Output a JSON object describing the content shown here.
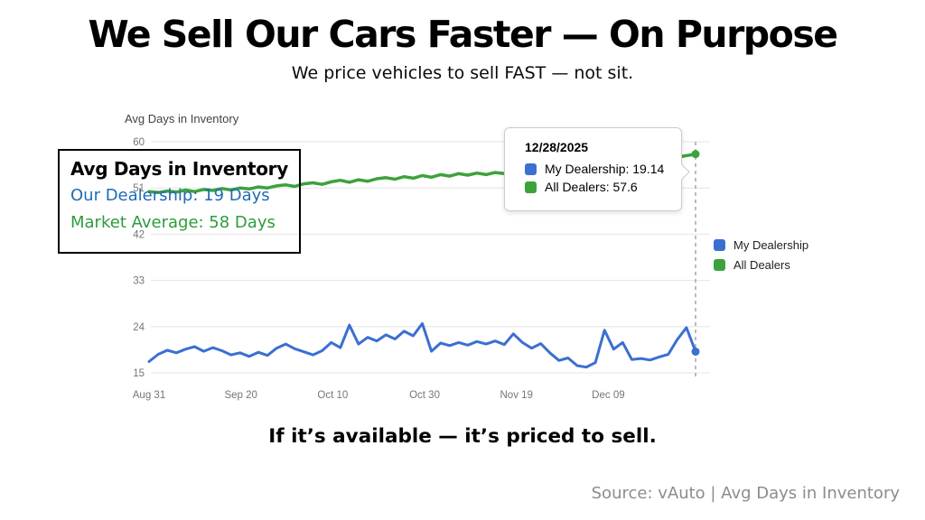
{
  "page": {
    "title": "We Sell Our Cars Faster — On Purpose",
    "subtitle": "We price vehicles to sell FAST — not sit.",
    "statement": "If it’s available — it’s priced to sell.",
    "source": "Source: vAuto | Avg Days in Inventory"
  },
  "colors": {
    "dealership_blue": "#3B6FD1",
    "dealers_green": "#3CA23C",
    "overlay_blue": "#1F6BB5",
    "overlay_green": "#2D9C3C",
    "grid": "#E4E4E4",
    "crosshair": "#9AA0A6"
  },
  "overlay": {
    "title": "Avg Days in Inventory",
    "line1": "Our Dealership: 19 Days",
    "line2": "Market Average: 58 Days"
  },
  "tooltip": {
    "date": "12/28/2025",
    "entries": [
      {
        "text": "My Dealership: 19.14",
        "color": "#3B6FD1"
      },
      {
        "text": "All Dealers: 57.6",
        "color": "#3CA23C"
      }
    ]
  },
  "legend": {
    "items": [
      {
        "label": "My Dealership",
        "color": "#3B6FD1"
      },
      {
        "label": "All Dealers",
        "color": "#3CA23C"
      }
    ]
  },
  "chart_data": {
    "type": "line",
    "title": "Avg Days in Inventory",
    "xlabel": "",
    "ylabel": "",
    "ylim": [
      15,
      60
    ],
    "x_range_days": [
      0,
      119
    ],
    "grid": "horizontal",
    "legend_position": "right",
    "y_ticks": [
      15,
      24,
      33,
      42,
      51,
      60
    ],
    "x_ticks": [
      {
        "label": "Aug 31",
        "day": 0
      },
      {
        "label": "Sep 20",
        "day": 20
      },
      {
        "label": "Oct 10",
        "day": 40
      },
      {
        "label": "Oct 30",
        "day": 60
      },
      {
        "label": "Nov 19",
        "day": 80
      },
      {
        "label": "Dec 09",
        "day": 100
      }
    ],
    "crosshair": {
      "day": 119,
      "date": "12/28/2025"
    },
    "series": [
      {
        "name": "My Dealership",
        "color": "#3B6FD1",
        "width": 3,
        "end_value": 19.14,
        "values": [
          17.2,
          18.6,
          19.4,
          18.9,
          19.6,
          20.1,
          19.2,
          19.9,
          19.3,
          18.5,
          18.9,
          18.2,
          19.0,
          18.4,
          19.8,
          20.6,
          19.7,
          19.1,
          18.5,
          19.3,
          20.9,
          19.9,
          24.3,
          20.6,
          21.9,
          21.2,
          22.4,
          21.6,
          23.1,
          22.2,
          24.6,
          19.2,
          20.8,
          20.3,
          20.9,
          20.4,
          21.1,
          20.6,
          21.2,
          20.5,
          22.6,
          20.9,
          19.8,
          20.7,
          18.9,
          17.4,
          17.9,
          16.4,
          16.1,
          17.0,
          23.3,
          19.6,
          20.9,
          17.6,
          17.8,
          17.5,
          18.1,
          18.6,
          21.5,
          23.8,
          19.14
        ]
      },
      {
        "name": "All Dealers",
        "color": "#3CA23C",
        "width": 3.5,
        "end_value": 57.6,
        "values": [
          50.3,
          50.1,
          50.4,
          50.2,
          50.6,
          50.3,
          50.7,
          50.5,
          50.9,
          50.6,
          51.0,
          50.8,
          51.2,
          51.0,
          51.4,
          51.6,
          51.3,
          51.8,
          52.0,
          51.7,
          52.2,
          52.5,
          52.1,
          52.6,
          52.3,
          52.8,
          53.0,
          52.7,
          53.2,
          52.9,
          53.4,
          53.1,
          53.6,
          53.3,
          53.8,
          53.5,
          53.9,
          53.6,
          54.0,
          53.8,
          54.2,
          54.0,
          54.4,
          54.2,
          54.6,
          54.4,
          54.8,
          54.6,
          55.0,
          55.2,
          55.5,
          55.3,
          55.8,
          56.0,
          56.3,
          56.1,
          56.5,
          56.8,
          57.0,
          57.3,
          57.6
        ]
      }
    ]
  }
}
